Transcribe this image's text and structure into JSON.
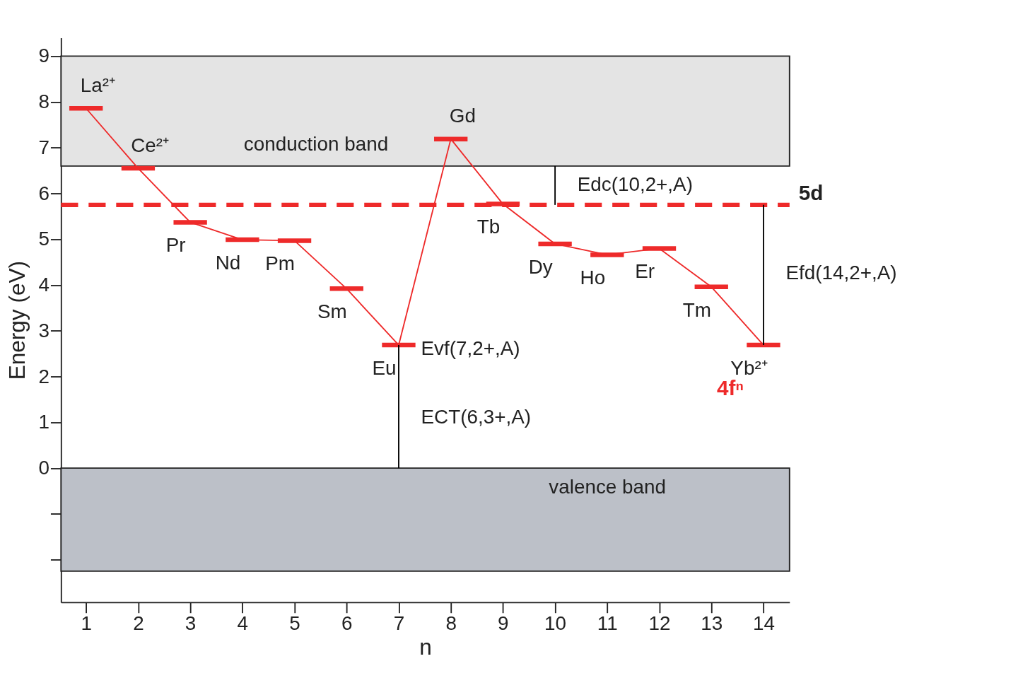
{
  "chart_data": {
    "type": "line",
    "xlabel": "n",
    "ylabel": "Energy (eV)",
    "xlim": [
      0.52,
      14.5
    ],
    "ylim": [
      -2.93,
      9.4
    ],
    "xticks": [
      1,
      2,
      3,
      4,
      5,
      6,
      7,
      8,
      9,
      10,
      11,
      12,
      13,
      14
    ],
    "yticks": [
      {
        "value": -2,
        "label": null
      },
      {
        "value": -1,
        "label": null
      },
      0,
      1,
      2,
      3,
      4,
      5,
      6,
      7,
      8,
      9
    ],
    "grid": false,
    "legend": false,
    "series": [
      {
        "name": "4fⁿ",
        "color": "#ee2a2a",
        "x": [
          1,
          2,
          3,
          4,
          5,
          6,
          7,
          8,
          9,
          10,
          11,
          12,
          13,
          14
        ],
        "values": [
          7.86,
          6.55,
          5.37,
          4.99,
          4.97,
          3.92,
          2.69,
          7.19,
          5.77,
          4.9,
          4.66,
          4.8,
          3.96,
          2.69
        ]
      },
      {
        "color": "#000000",
        "marker": "none",
        "x": [
          7,
          7
        ],
        "values": [
          0,
          2.69
        ]
      },
      {
        "color": "#000000",
        "marker": "none",
        "x": [
          10,
          10
        ],
        "values": [
          5.75,
          6.6
        ]
      },
      {
        "color": "#000000",
        "marker": "none",
        "x": [
          14,
          14
        ],
        "values": [
          2.69,
          5.75
        ]
      }
    ],
    "ref_lines": [
      {
        "axis": "y",
        "value": 5.75,
        "label": "5d",
        "color": "#ee2a2a",
        "line_style": "dashed"
      }
    ],
    "bands": [
      {
        "axis": "y",
        "from": 6.6,
        "to": 9,
        "label": "conduction band",
        "color": "#e4e4e4"
      },
      {
        "axis": "y",
        "from": -2.25,
        "to": 0,
        "label": "valence band",
        "color": "#bcc0c8"
      }
    ],
    "annotations": [
      {
        "text": "La²⁺",
        "x": 1,
        "y": 7.86
      },
      {
        "text": "Ce²⁺",
        "x": 2,
        "y": 6.55
      },
      {
        "text": "Pr",
        "x": 3,
        "y": 5.37
      },
      {
        "text": "Nd",
        "x": 4,
        "y": 4.99
      },
      {
        "text": "Pm",
        "x": 5,
        "y": 4.97
      },
      {
        "text": "Sm",
        "x": 6,
        "y": 3.92
      },
      {
        "text": "Eu",
        "x": 7,
        "y": 2.69
      },
      {
        "text": "Gd",
        "x": 8,
        "y": 7.19
      },
      {
        "text": "Tb",
        "x": 9,
        "y": 5.77
      },
      {
        "text": "Dy",
        "x": 10,
        "y": 4.9
      },
      {
        "text": "Ho",
        "x": 11,
        "y": 4.66
      },
      {
        "text": "Er",
        "x": 12,
        "y": 4.8
      },
      {
        "text": "Tm",
        "x": 13,
        "y": 3.96
      },
      {
        "text": "Yb²⁺",
        "x": 14,
        "y": 2.69
      },
      {
        "text": "Evf(7,2+,A)",
        "x": 7,
        "y": 2.6
      },
      {
        "text": "ECT(6,3+,A)",
        "x": 7,
        "y": 1.1
      },
      {
        "text": "Edc(10,2+,A)",
        "x": 10,
        "y": 6.18
      },
      {
        "text": "Efd(14,2+,A)",
        "x": 14,
        "y": 4.26
      }
    ]
  }
}
